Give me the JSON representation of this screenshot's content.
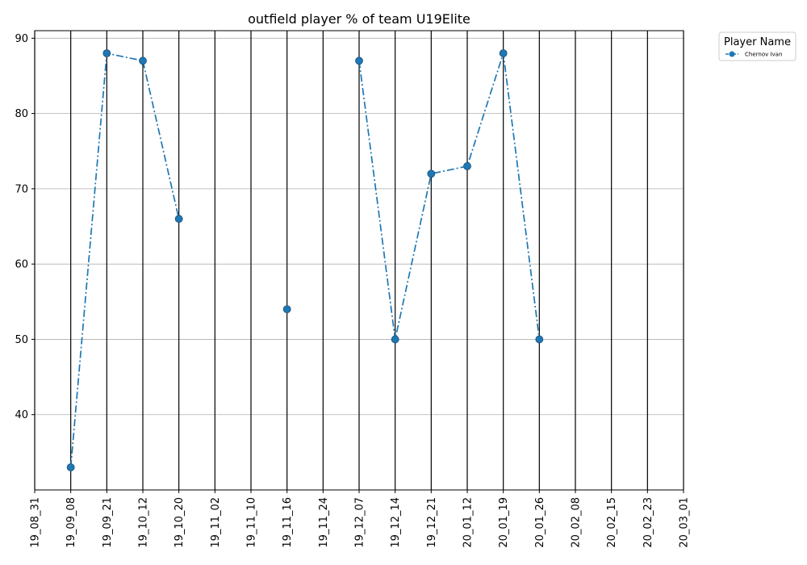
{
  "chart_data": {
    "type": "line",
    "title": "outfield player % of team U19Elite",
    "xlabel": "",
    "ylabel": "",
    "categories": [
      "19_08_31",
      "19_09_08",
      "19_09_21",
      "19_10_12",
      "19_10_20",
      "19_11_02",
      "19_11_10",
      "19_11_16",
      "19_11_24",
      "19_12_07",
      "19_12_14",
      "19_12_21",
      "20_01_12",
      "20_01_19",
      "20_01_26",
      "20_02_08",
      "20_02_15",
      "20_02_23",
      "20_03_01"
    ],
    "yticks": [
      40,
      50,
      60,
      70,
      80,
      90
    ],
    "ylim": [
      30,
      91
    ],
    "grid": "horizontal gridlines; vertical black lines at each date",
    "legend": {
      "title": "Player Name",
      "placement": "outside top-right"
    },
    "series": [
      {
        "name": "Chernov Ivan",
        "color": "#1f77b4",
        "line_style": "dash-dot",
        "marker": "circle",
        "values": [
          null,
          33,
          88,
          87,
          66,
          null,
          null,
          54,
          null,
          87,
          50,
          72,
          73,
          88,
          50,
          null,
          null,
          null,
          null
        ]
      }
    ]
  }
}
